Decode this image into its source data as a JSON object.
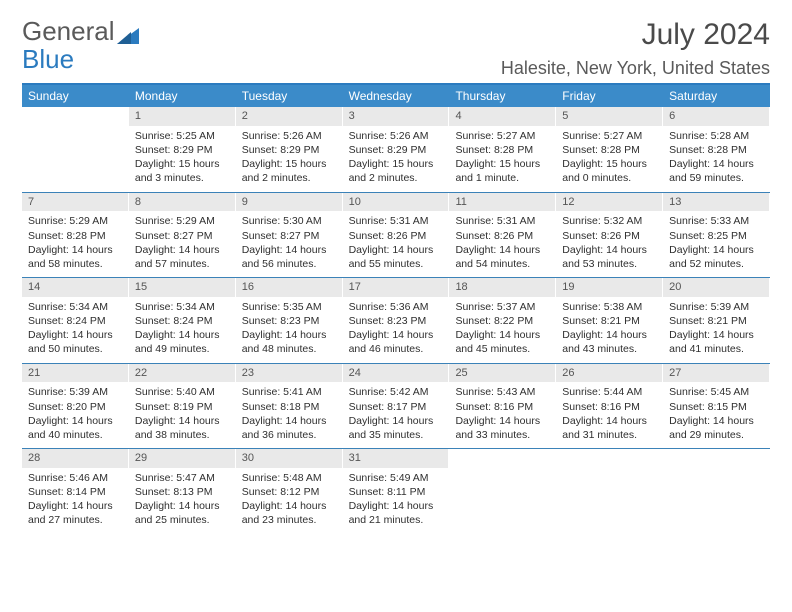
{
  "brand": {
    "word1": "General",
    "word2": "Blue"
  },
  "title": {
    "month_year": "July 2024",
    "location": "Halesite, New York, United States"
  },
  "colors": {
    "header_bg": "#3b8bc9",
    "header_border": "#2b7bbf",
    "week_border": "#3b82b8",
    "daynum_bg": "#e9e9e9",
    "text": "#333333"
  },
  "day_names": [
    "Sunday",
    "Monday",
    "Tuesday",
    "Wednesday",
    "Thursday",
    "Friday",
    "Saturday"
  ],
  "weeks": [
    [
      {
        "n": "",
        "sr": "",
        "ss": "",
        "dl": "",
        "dl2": ""
      },
      {
        "n": "1",
        "sr": "Sunrise: 5:25 AM",
        "ss": "Sunset: 8:29 PM",
        "dl": "Daylight: 15 hours",
        "dl2": "and 3 minutes."
      },
      {
        "n": "2",
        "sr": "Sunrise: 5:26 AM",
        "ss": "Sunset: 8:29 PM",
        "dl": "Daylight: 15 hours",
        "dl2": "and 2 minutes."
      },
      {
        "n": "3",
        "sr": "Sunrise: 5:26 AM",
        "ss": "Sunset: 8:29 PM",
        "dl": "Daylight: 15 hours",
        "dl2": "and 2 minutes."
      },
      {
        "n": "4",
        "sr": "Sunrise: 5:27 AM",
        "ss": "Sunset: 8:28 PM",
        "dl": "Daylight: 15 hours",
        "dl2": "and 1 minute."
      },
      {
        "n": "5",
        "sr": "Sunrise: 5:27 AM",
        "ss": "Sunset: 8:28 PM",
        "dl": "Daylight: 15 hours",
        "dl2": "and 0 minutes."
      },
      {
        "n": "6",
        "sr": "Sunrise: 5:28 AM",
        "ss": "Sunset: 8:28 PM",
        "dl": "Daylight: 14 hours",
        "dl2": "and 59 minutes."
      }
    ],
    [
      {
        "n": "7",
        "sr": "Sunrise: 5:29 AM",
        "ss": "Sunset: 8:28 PM",
        "dl": "Daylight: 14 hours",
        "dl2": "and 58 minutes."
      },
      {
        "n": "8",
        "sr": "Sunrise: 5:29 AM",
        "ss": "Sunset: 8:27 PM",
        "dl": "Daylight: 14 hours",
        "dl2": "and 57 minutes."
      },
      {
        "n": "9",
        "sr": "Sunrise: 5:30 AM",
        "ss": "Sunset: 8:27 PM",
        "dl": "Daylight: 14 hours",
        "dl2": "and 56 minutes."
      },
      {
        "n": "10",
        "sr": "Sunrise: 5:31 AM",
        "ss": "Sunset: 8:26 PM",
        "dl": "Daylight: 14 hours",
        "dl2": "and 55 minutes."
      },
      {
        "n": "11",
        "sr": "Sunrise: 5:31 AM",
        "ss": "Sunset: 8:26 PM",
        "dl": "Daylight: 14 hours",
        "dl2": "and 54 minutes."
      },
      {
        "n": "12",
        "sr": "Sunrise: 5:32 AM",
        "ss": "Sunset: 8:26 PM",
        "dl": "Daylight: 14 hours",
        "dl2": "and 53 minutes."
      },
      {
        "n": "13",
        "sr": "Sunrise: 5:33 AM",
        "ss": "Sunset: 8:25 PM",
        "dl": "Daylight: 14 hours",
        "dl2": "and 52 minutes."
      }
    ],
    [
      {
        "n": "14",
        "sr": "Sunrise: 5:34 AM",
        "ss": "Sunset: 8:24 PM",
        "dl": "Daylight: 14 hours",
        "dl2": "and 50 minutes."
      },
      {
        "n": "15",
        "sr": "Sunrise: 5:34 AM",
        "ss": "Sunset: 8:24 PM",
        "dl": "Daylight: 14 hours",
        "dl2": "and 49 minutes."
      },
      {
        "n": "16",
        "sr": "Sunrise: 5:35 AM",
        "ss": "Sunset: 8:23 PM",
        "dl": "Daylight: 14 hours",
        "dl2": "and 48 minutes."
      },
      {
        "n": "17",
        "sr": "Sunrise: 5:36 AM",
        "ss": "Sunset: 8:23 PM",
        "dl": "Daylight: 14 hours",
        "dl2": "and 46 minutes."
      },
      {
        "n": "18",
        "sr": "Sunrise: 5:37 AM",
        "ss": "Sunset: 8:22 PM",
        "dl": "Daylight: 14 hours",
        "dl2": "and 45 minutes."
      },
      {
        "n": "19",
        "sr": "Sunrise: 5:38 AM",
        "ss": "Sunset: 8:21 PM",
        "dl": "Daylight: 14 hours",
        "dl2": "and 43 minutes."
      },
      {
        "n": "20",
        "sr": "Sunrise: 5:39 AM",
        "ss": "Sunset: 8:21 PM",
        "dl": "Daylight: 14 hours",
        "dl2": "and 41 minutes."
      }
    ],
    [
      {
        "n": "21",
        "sr": "Sunrise: 5:39 AM",
        "ss": "Sunset: 8:20 PM",
        "dl": "Daylight: 14 hours",
        "dl2": "and 40 minutes."
      },
      {
        "n": "22",
        "sr": "Sunrise: 5:40 AM",
        "ss": "Sunset: 8:19 PM",
        "dl": "Daylight: 14 hours",
        "dl2": "and 38 minutes."
      },
      {
        "n": "23",
        "sr": "Sunrise: 5:41 AM",
        "ss": "Sunset: 8:18 PM",
        "dl": "Daylight: 14 hours",
        "dl2": "and 36 minutes."
      },
      {
        "n": "24",
        "sr": "Sunrise: 5:42 AM",
        "ss": "Sunset: 8:17 PM",
        "dl": "Daylight: 14 hours",
        "dl2": "and 35 minutes."
      },
      {
        "n": "25",
        "sr": "Sunrise: 5:43 AM",
        "ss": "Sunset: 8:16 PM",
        "dl": "Daylight: 14 hours",
        "dl2": "and 33 minutes."
      },
      {
        "n": "26",
        "sr": "Sunrise: 5:44 AM",
        "ss": "Sunset: 8:16 PM",
        "dl": "Daylight: 14 hours",
        "dl2": "and 31 minutes."
      },
      {
        "n": "27",
        "sr": "Sunrise: 5:45 AM",
        "ss": "Sunset: 8:15 PM",
        "dl": "Daylight: 14 hours",
        "dl2": "and 29 minutes."
      }
    ],
    [
      {
        "n": "28",
        "sr": "Sunrise: 5:46 AM",
        "ss": "Sunset: 8:14 PM",
        "dl": "Daylight: 14 hours",
        "dl2": "and 27 minutes."
      },
      {
        "n": "29",
        "sr": "Sunrise: 5:47 AM",
        "ss": "Sunset: 8:13 PM",
        "dl": "Daylight: 14 hours",
        "dl2": "and 25 minutes."
      },
      {
        "n": "30",
        "sr": "Sunrise: 5:48 AM",
        "ss": "Sunset: 8:12 PM",
        "dl": "Daylight: 14 hours",
        "dl2": "and 23 minutes."
      },
      {
        "n": "31",
        "sr": "Sunrise: 5:49 AM",
        "ss": "Sunset: 8:11 PM",
        "dl": "Daylight: 14 hours",
        "dl2": "and 21 minutes."
      },
      {
        "n": "",
        "sr": "",
        "ss": "",
        "dl": "",
        "dl2": ""
      },
      {
        "n": "",
        "sr": "",
        "ss": "",
        "dl": "",
        "dl2": ""
      },
      {
        "n": "",
        "sr": "",
        "ss": "",
        "dl": "",
        "dl2": ""
      }
    ]
  ]
}
